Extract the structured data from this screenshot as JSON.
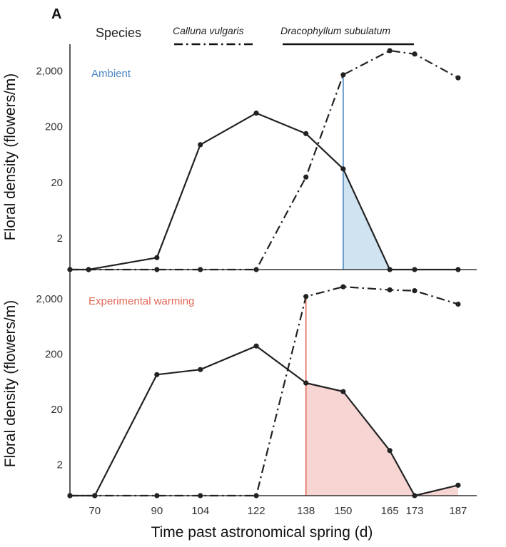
{
  "panel_letter": "A",
  "legend": {
    "title": "Species",
    "entries": [
      {
        "name": "Calluna vulgaris",
        "style": "dashdot"
      },
      {
        "name": "Dracophyllum subulatum",
        "style": "solid"
      }
    ]
  },
  "chart_data": [
    {
      "type": "line",
      "panel_label": "Ambient",
      "label_color": "#4a86c0",
      "shade_color": "#cfe3f1",
      "ylabel": "Floral density (flowers/m)",
      "xlabel": "Time past astronomical spring (d)",
      "y_scale": "log",
      "yticks": [
        2,
        20,
        200,
        2000
      ],
      "ytick_labels": [
        "2",
        "20",
        "200",
        "2,000"
      ],
      "xticks": [
        70,
        90,
        104,
        122,
        138,
        150,
        165,
        173,
        187
      ],
      "xlim": [
        62,
        193
      ],
      "ylim": [
        0.55,
        6000
      ],
      "overlap_start_day": 150,
      "series": [
        {
          "name": "Calluna vulgaris",
          "style": "dashdot",
          "x": [
            62,
            68,
            90,
            104,
            122,
            138,
            150,
            165,
            173,
            187
          ],
          "y": [
            0.55,
            0.55,
            0.55,
            0.55,
            0.55,
            25,
            1700,
            4600,
            4000,
            1500
          ]
        },
        {
          "name": "Dracophyllum subulatum",
          "style": "solid",
          "x": [
            62,
            68,
            90,
            104,
            122,
            138,
            150,
            165,
            173,
            187
          ],
          "y": [
            0.55,
            0.55,
            0.9,
            95,
            350,
            150,
            35,
            0.55,
            0.55,
            0.55
          ]
        }
      ]
    },
    {
      "type": "line",
      "panel_label": "Experimental warming",
      "label_color": "#e06a58",
      "shade_color": "#f7d5d3",
      "ylabel": "Floral density (flowers/m)",
      "xlabel": "Time past astronomical spring (d)",
      "y_scale": "log",
      "yticks": [
        2,
        20,
        200,
        2000
      ],
      "ytick_labels": [
        "2",
        "20",
        "200",
        "2,000"
      ],
      "xticks": [
        70,
        90,
        104,
        122,
        138,
        150,
        165,
        173,
        187
      ],
      "xlim": [
        62,
        193
      ],
      "ylim": [
        0.55,
        6000
      ],
      "overlap_start_day": 138,
      "series": [
        {
          "name": "Calluna vulgaris",
          "style": "dashdot",
          "x": [
            62,
            70,
            90,
            104,
            122,
            138,
            150,
            165,
            173,
            187
          ],
          "y": [
            0.55,
            0.55,
            0.55,
            0.55,
            0.55,
            2200,
            3300,
            2900,
            2800,
            1600
          ]
        },
        {
          "name": "Dracophyllum subulatum",
          "style": "solid",
          "x": [
            62,
            70,
            90,
            104,
            122,
            138,
            150,
            165,
            173,
            187
          ],
          "y": [
            0.55,
            0.55,
            85,
            105,
            280,
            60,
            42,
            3.6,
            0.55,
            0.85
          ]
        }
      ]
    }
  ]
}
